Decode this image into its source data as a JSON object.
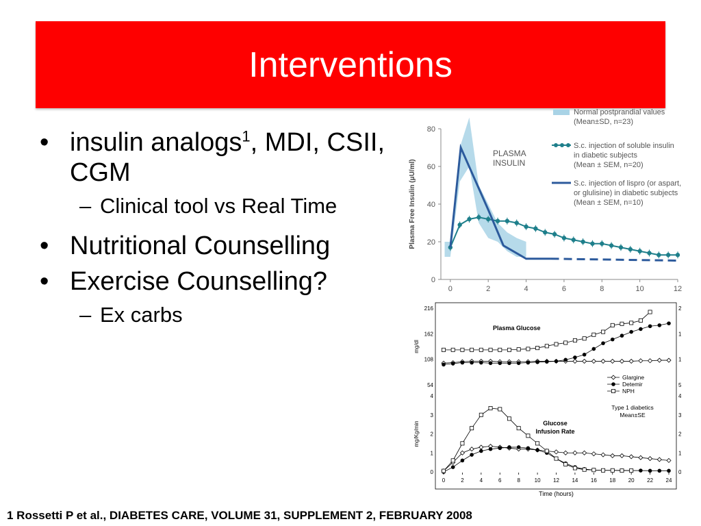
{
  "slide": {
    "title": "Interventions",
    "bullets": [
      {
        "marker": "•",
        "text": "insulin analogs",
        "sup": "1",
        "text_after": ", MDI, CSII, CGM"
      },
      {
        "marker": "–",
        "text": "Clinical tool vs Real Time"
      },
      {
        "marker": "•",
        "text": "Nutritional Counselling"
      },
      {
        "marker": "•",
        "text": "Exercise Counselling?"
      },
      {
        "marker": "–",
        "text": "Ex carbs"
      }
    ],
    "footnote": "1 Rossetti P et al., DIABETES CARE, VOLUME 31, SUPPLEMENT 2, FEBRUARY 2008"
  },
  "colors": {
    "title_bg": "#fe0000",
    "title_text": "#ffffff",
    "band": "#a9d3e6",
    "teal": "#1e7f8b",
    "navy": "#2c5a9c"
  },
  "chart_data": [
    {
      "type": "line",
      "title": "",
      "annotation": "PLASMA INSULIN",
      "ylabel": "Plasma Free Insulin (μU/ml)",
      "xlabel": "",
      "ylim": [
        0,
        80
      ],
      "xlim": [
        -0.5,
        12
      ],
      "yticks": [
        0,
        20,
        40,
        60,
        80
      ],
      "xticks": [
        0,
        2,
        4,
        6,
        8,
        10,
        12
      ],
      "legend": [
        {
          "text": "Normal postprandial values",
          "text2": "(Mean±SD, n=23)",
          "style": "band"
        },
        {
          "text": "S.c. injection of soluble insulin",
          "text2": "in diabetic subjects",
          "text3": "(Mean ± SEM, n=20)",
          "style": "teal"
        },
        {
          "text": "S.c. injection of lispro (or aspart,",
          "text2": "or glulisine) in diabetic subjects",
          "text3": "(Mean ± SEM, n=10)",
          "style": "navy"
        }
      ],
      "series": [
        {
          "style": "band",
          "x": [
            -0.3,
            0,
            0.5,
            1,
            1.5,
            2,
            2.5,
            3,
            3.5,
            4
          ],
          "lower": [
            12,
            12,
            52,
            60,
            30,
            22,
            20,
            15,
            12,
            12
          ],
          "upper": [
            20,
            20,
            70,
            86,
            50,
            40,
            30,
            25,
            22,
            20
          ]
        },
        {
          "style": "teal",
          "x": [
            0,
            0.5,
            1,
            1.5,
            2,
            2.5,
            3,
            3.5,
            4,
            4.5,
            5,
            5.5,
            6,
            6.5,
            7,
            7.5,
            8,
            8.5,
            9,
            9.5,
            10,
            10.5,
            11,
            11.5,
            12
          ],
          "y": [
            17,
            29,
            32,
            33,
            32,
            31,
            31,
            30,
            28,
            27,
            25,
            24,
            22,
            21,
            20,
            19,
            19,
            18,
            17,
            16,
            15,
            14,
            13,
            13,
            13
          ]
        },
        {
          "style": "navy",
          "x": [
            0,
            0.55,
            2,
            2.8,
            4,
            5.3
          ],
          "y": [
            17,
            70,
            37,
            18,
            11,
            11
          ]
        },
        {
          "style": "navy-dashed",
          "x": [
            5.3,
            12
          ],
          "y": [
            11,
            10
          ]
        }
      ]
    },
    {
      "type": "line",
      "title": "Plasma Glucose",
      "ylabel": "mg/dl",
      "ylim": [
        54,
        216
      ],
      "yticks": [
        54,
        108,
        162,
        216
      ],
      "xlim": [
        0,
        24
      ],
      "legend": [
        {
          "text": "Glargine",
          "marker": "diamond"
        },
        {
          "text": "Detemir",
          "marker": "filled-circle"
        },
        {
          "text": "NPH",
          "marker": "square"
        }
      ],
      "series": [
        {
          "name": "Glargine",
          "marker": "diamond",
          "x": [
            0,
            1,
            2,
            3,
            4,
            5,
            6,
            7,
            8,
            9,
            10,
            11,
            12,
            13,
            14,
            15,
            16,
            17,
            18,
            19,
            20,
            21,
            22,
            23,
            24
          ],
          "y": [
            100,
            101,
            103,
            104,
            104,
            104,
            103,
            103,
            103,
            103,
            104,
            104,
            104,
            104,
            104,
            104,
            104,
            104,
            104,
            104,
            104,
            105,
            105,
            106,
            106
          ]
        },
        {
          "name": "Detemir",
          "marker": "filled-circle",
          "x": [
            0,
            1,
            2,
            3,
            4,
            5,
            6,
            7,
            8,
            9,
            10,
            11,
            12,
            13,
            14,
            15,
            16,
            17,
            18,
            19,
            20,
            21,
            22,
            23,
            24
          ],
          "y": [
            97,
            99,
            101,
            101,
            101,
            100,
            100,
            100,
            100,
            101,
            102,
            103,
            104,
            107,
            112,
            118,
            130,
            142,
            150,
            158,
            166,
            172,
            178,
            180,
            184
          ]
        },
        {
          "name": "NPH",
          "marker": "square",
          "x": [
            0,
            1,
            2,
            3,
            4,
            5,
            6,
            7,
            8,
            9,
            10,
            11,
            12,
            13,
            14,
            15,
            16,
            17,
            18,
            19,
            20,
            21,
            22
          ],
          "y": [
            128,
            128,
            128,
            128,
            128,
            128,
            128,
            128,
            129,
            130,
            132,
            136,
            140,
            143,
            148,
            152,
            160,
            166,
            180,
            183,
            185,
            190,
            208
          ]
        }
      ]
    },
    {
      "type": "line",
      "title": "Glucose Infusion Rate",
      "annotation": "Type 1 diabetics Mean±SE",
      "annotation_lines": [
        "Type 1 diabetics",
        "Mean±SE"
      ],
      "ylabel": "mg/Kg/min",
      "xlabel": "Time (hours)",
      "ylim": [
        0,
        4
      ],
      "xlim": [
        0,
        24
      ],
      "yticks": [
        0,
        1,
        2,
        3,
        4
      ],
      "xticks": [
        0,
        2,
        4,
        6,
        8,
        10,
        12,
        14,
        16,
        18,
        20,
        22,
        24
      ],
      "series": [
        {
          "name": "Glargine",
          "marker": "diamond",
          "x": [
            0,
            1,
            2,
            3,
            4,
            5,
            6,
            7,
            8,
            9,
            10,
            11,
            12,
            13,
            14,
            15,
            16,
            17,
            18,
            19,
            20,
            21,
            22,
            23,
            24
          ],
          "y": [
            0.05,
            0.5,
            1.0,
            1.2,
            1.3,
            1.35,
            1.3,
            1.25,
            1.2,
            1.2,
            1.15,
            1.1,
            1.05,
            1.0,
            1.0,
            1.0,
            0.95,
            0.9,
            0.85,
            0.85,
            0.8,
            0.75,
            0.7,
            0.65,
            0.6
          ]
        },
        {
          "name": "Detemir",
          "marker": "filled-circle",
          "x": [
            0,
            1,
            2,
            3,
            4,
            5,
            6,
            7,
            8,
            9,
            10,
            11,
            12,
            13,
            14,
            15,
            16,
            17,
            18,
            19,
            20,
            21,
            22,
            23,
            24
          ],
          "y": [
            0.0,
            0.25,
            0.6,
            0.9,
            1.1,
            1.2,
            1.25,
            1.3,
            1.3,
            1.25,
            1.15,
            1.0,
            0.7,
            0.45,
            0.25,
            0.15,
            0.1,
            0.08,
            0.08,
            0.08,
            0.07,
            0.07,
            0.06,
            0.06,
            0.06
          ]
        },
        {
          "name": "NPH",
          "marker": "square",
          "x": [
            0,
            1,
            2,
            3,
            4,
            5,
            6,
            7,
            8,
            9,
            10,
            11,
            12,
            13,
            14,
            15,
            16,
            17,
            18,
            19,
            20
          ],
          "y": [
            0.05,
            0.6,
            1.5,
            2.3,
            3.0,
            3.35,
            3.3,
            2.8,
            2.3,
            1.9,
            1.5,
            1.1,
            0.7,
            0.4,
            0.2,
            0.12,
            0.1,
            0.08,
            0.08,
            0.07,
            0.07
          ]
        }
      ]
    }
  ]
}
